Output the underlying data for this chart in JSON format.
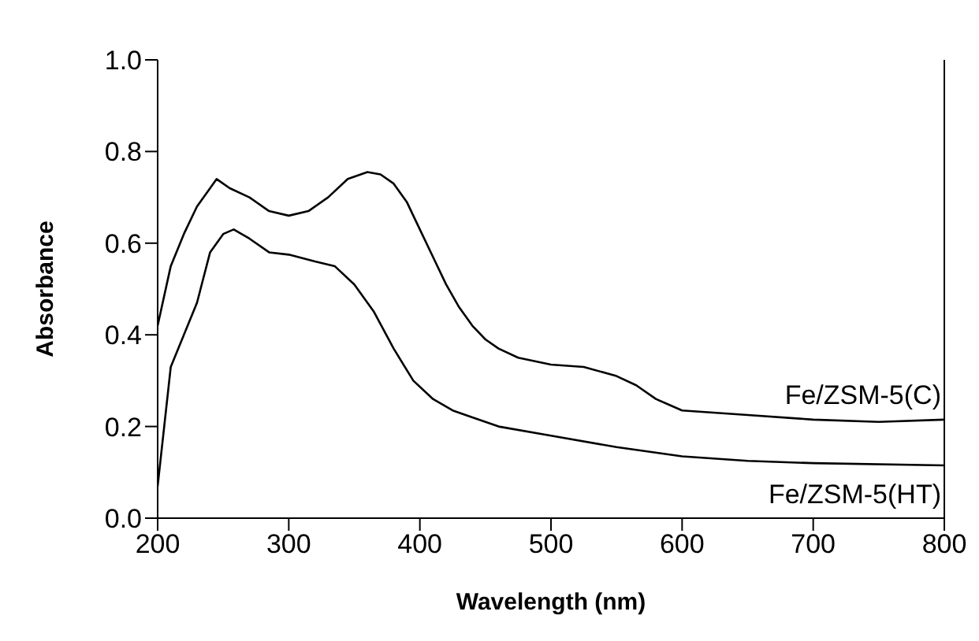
{
  "chart_data": {
    "type": "line",
    "xlabel": "Wavelength (nm)",
    "ylabel": "Absorbance",
    "xlim": [
      200,
      800
    ],
    "xticks": [
      200,
      300,
      400,
      500,
      600,
      700,
      800
    ],
    "ylim": [
      0,
      1
    ],
    "yticks": [
      {
        "value": 0,
        "label": "0.0"
      },
      {
        "value": 0.2,
        "label": "0.2"
      },
      {
        "value": 0.4,
        "label": "0.4"
      },
      {
        "value": 0.6,
        "label": "0.6"
      },
      {
        "value": 0.8,
        "label": "0.8"
      },
      {
        "value": 1,
        "label": "1.0"
      }
    ],
    "grid": false,
    "legend": false,
    "marker": "none",
    "line_style": "solid",
    "series": [
      {
        "name": "Fe/ZSM-5(C)",
        "color": "#000000",
        "x": [
          200,
          210,
          220,
          230,
          240,
          245,
          255,
          270,
          285,
          300,
          315,
          330,
          345,
          360,
          370,
          380,
          390,
          400,
          410,
          420,
          430,
          440,
          450,
          460,
          475,
          500,
          525,
          550,
          565,
          580,
          600,
          650,
          700,
          750,
          800
        ],
        "values": [
          0.42,
          0.55,
          0.62,
          0.68,
          0.72,
          0.74,
          0.72,
          0.7,
          0.67,
          0.66,
          0.67,
          0.7,
          0.74,
          0.755,
          0.75,
          0.73,
          0.69,
          0.63,
          0.57,
          0.51,
          0.46,
          0.42,
          0.39,
          0.37,
          0.35,
          0.335,
          0.33,
          0.31,
          0.29,
          0.26,
          0.235,
          0.225,
          0.215,
          0.21,
          0.215
        ]
      },
      {
        "name": "Fe/ZSM-5(HT)",
        "color": "#000000",
        "x": [
          200,
          205,
          210,
          220,
          230,
          240,
          250,
          258,
          270,
          285,
          300,
          320,
          335,
          350,
          365,
          380,
          395,
          410,
          425,
          440,
          460,
          500,
          550,
          600,
          650,
          700,
          800
        ],
        "values": [
          0.07,
          0.2,
          0.33,
          0.4,
          0.47,
          0.58,
          0.62,
          0.63,
          0.61,
          0.58,
          0.575,
          0.56,
          0.55,
          0.51,
          0.45,
          0.37,
          0.3,
          0.26,
          0.235,
          0.22,
          0.2,
          0.18,
          0.155,
          0.135,
          0.125,
          0.12,
          0.115
        ]
      }
    ]
  }
}
